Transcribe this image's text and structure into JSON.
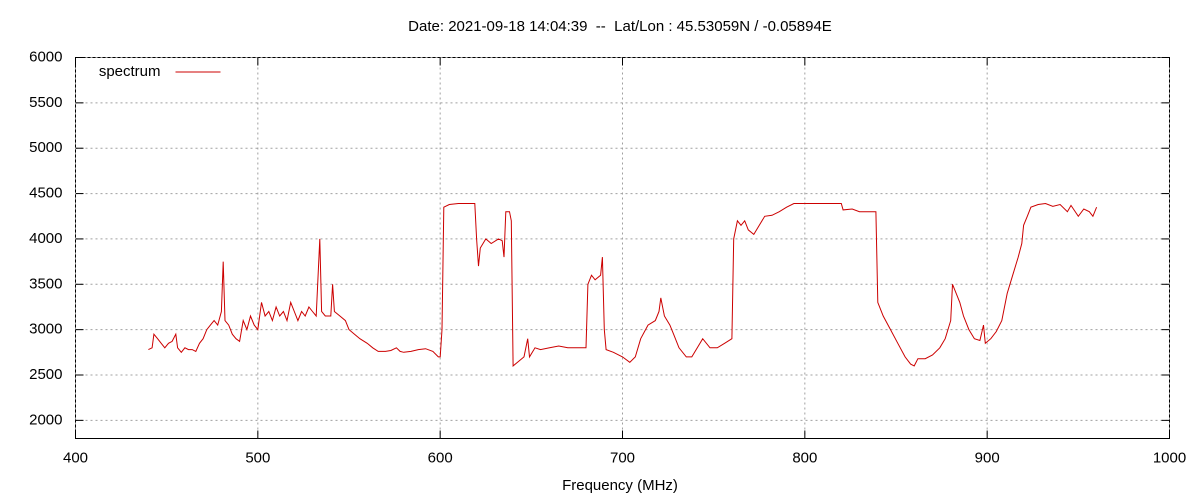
{
  "chart_data": {
    "type": "line",
    "title": "Date: 2021-09-18 14:04:39  --  Lat/Lon : 45.53059N / -0.05894E",
    "x_label": "Frequency (MHz)",
    "xlim": [
      400,
      1000
    ],
    "xticks": [
      400,
      500,
      600,
      700,
      800,
      900,
      1000
    ],
    "ylim": [
      1800,
      6000
    ],
    "yticks": [
      2000,
      2500,
      3000,
      3500,
      4000,
      4500,
      5000,
      5500,
      6000
    ],
    "grid": true,
    "legend": "upper left",
    "x": [
      440,
      442,
      443,
      445,
      447,
      449,
      451,
      453,
      455,
      456,
      458,
      460,
      462,
      464,
      466,
      468,
      470,
      472,
      474,
      476,
      478,
      480,
      481,
      482,
      484,
      486,
      488,
      490,
      492,
      494,
      496,
      498,
      500,
      502,
      504,
      506,
      508,
      510,
      512,
      514,
      516,
      518,
      520,
      522,
      524,
      526,
      528,
      530,
      532,
      534,
      535,
      537,
      540,
      541,
      542,
      545,
      548,
      550,
      553,
      556,
      560,
      563,
      566,
      570,
      573,
      576,
      578,
      580,
      584,
      588,
      592,
      596,
      599,
      600,
      601,
      602,
      605,
      610,
      615,
      619,
      620,
      621,
      622,
      625,
      628,
      632,
      634,
      635,
      636,
      638,
      639,
      640,
      643,
      646,
      648,
      649,
      652,
      655,
      660,
      665,
      670,
      675,
      680,
      681,
      683,
      685,
      688,
      689,
      690,
      691,
      695,
      700,
      704,
      707,
      710,
      714,
      718,
      720,
      721,
      723,
      726,
      728,
      731,
      735,
      738,
      741,
      744,
      748,
      752,
      756,
      760,
      761,
      763,
      765,
      767,
      769,
      772,
      775,
      778,
      782,
      786,
      790,
      794,
      800,
      810,
      820,
      821,
      826,
      830,
      835,
      839,
      840,
      843,
      847,
      851,
      855,
      858,
      860,
      862,
      866,
      870,
      874,
      877,
      880,
      881,
      883,
      885,
      887,
      890,
      893,
      896,
      898,
      899,
      902,
      905,
      908,
      911,
      914,
      917,
      919,
      920,
      922,
      924,
      928,
      932,
      936,
      940,
      944,
      946,
      950,
      953,
      956,
      958,
      960
    ],
    "series": [
      {
        "name": "spectrum",
        "color": "#cc0000",
        "values": [
          2780,
          2800,
          2950,
          2900,
          2850,
          2800,
          2850,
          2870,
          2950,
          2800,
          2750,
          2800,
          2780,
          2780,
          2760,
          2850,
          2900,
          3000,
          3050,
          3100,
          3050,
          3200,
          3750,
          3100,
          3050,
          2950,
          2900,
          2870,
          3100,
          3000,
          3150,
          3050,
          3000,
          3300,
          3150,
          3200,
          3100,
          3250,
          3150,
          3200,
          3100,
          3300,
          3200,
          3100,
          3200,
          3150,
          3250,
          3200,
          3150,
          4000,
          3200,
          3150,
          3150,
          3500,
          3200,
          3150,
          3100,
          3000,
          2950,
          2900,
          2850,
          2800,
          2760,
          2760,
          2770,
          2800,
          2760,
          2750,
          2760,
          2780,
          2790,
          2760,
          2700,
          2700,
          3000,
          4350,
          4380,
          4390,
          4390,
          4390,
          4000,
          3700,
          3900,
          4000,
          3950,
          4000,
          3980,
          3800,
          4300,
          4300,
          4200,
          2600,
          2650,
          2700,
          2900,
          2700,
          2800,
          2780,
          2800,
          2820,
          2800,
          2800,
          2800,
          3500,
          3600,
          3550,
          3600,
          3800,
          3000,
          2780,
          2750,
          2700,
          2640,
          2700,
          2900,
          3050,
          3100,
          3200,
          3350,
          3150,
          3050,
          2950,
          2800,
          2700,
          2700,
          2800,
          2900,
          2800,
          2800,
          2850,
          2900,
          4000,
          4200,
          4150,
          4200,
          4100,
          4050,
          4150,
          4250,
          4260,
          4300,
          4350,
          4390,
          4390,
          4390,
          4390,
          4320,
          4330,
          4300,
          4300,
          4300,
          3300,
          3150,
          3000,
          2850,
          2700,
          2620,
          2600,
          2680,
          2680,
          2720,
          2800,
          2900,
          3100,
          3500,
          3400,
          3300,
          3150,
          3000,
          2900,
          2880,
          3050,
          2850,
          2900,
          2980,
          3100,
          3400,
          3600,
          3800,
          3950,
          4150,
          4250,
          4350,
          4380,
          4390,
          4360,
          4380,
          4300,
          4370,
          4250,
          4330,
          4300,
          4250,
          4350
        ]
      }
    ]
  }
}
